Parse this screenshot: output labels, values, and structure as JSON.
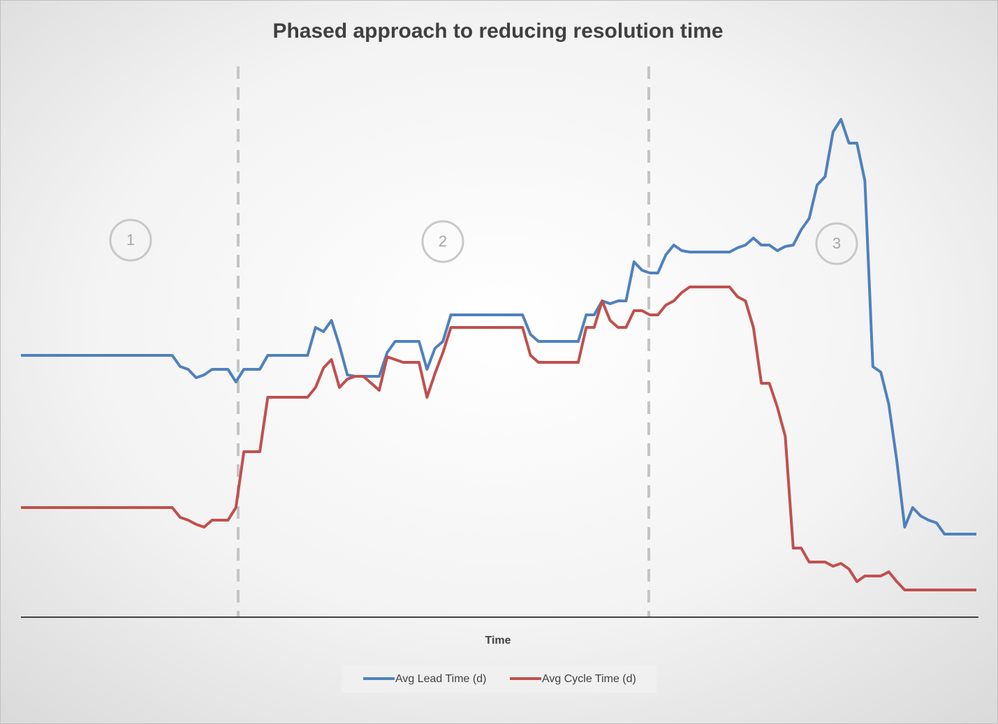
{
  "chart_data": {
    "type": "line",
    "title": "Phased approach to reducing resolution time",
    "x_label": "Time",
    "annotations": [
      "1",
      "2",
      "3"
    ],
    "categories": [
      null,
      null,
      null,
      null,
      null,
      null,
      null,
      null,
      null,
      null,
      null,
      null,
      null,
      null,
      null,
      null,
      null,
      null,
      null,
      null,
      null,
      null,
      null,
      null,
      null,
      null,
      null,
      null,
      null,
      null,
      null,
      null,
      null,
      null,
      null,
      null,
      null,
      null,
      null,
      null,
      null,
      null,
      null,
      null,
      null,
      null,
      null,
      null,
      null,
      null,
      null,
      null,
      null,
      null,
      null,
      null,
      null,
      null,
      null,
      null,
      null,
      null,
      null,
      null,
      null,
      null,
      null,
      null,
      null,
      null,
      null,
      null,
      null,
      null,
      null,
      null,
      null,
      null,
      null,
      null,
      null,
      null,
      null,
      null,
      null,
      null,
      null,
      null,
      null,
      null,
      null,
      null,
      null,
      null,
      null,
      null,
      null,
      null,
      null,
      null,
      null,
      null,
      null,
      null,
      null,
      null,
      null,
      null,
      null,
      null,
      null,
      null,
      null,
      null,
      null,
      null,
      null,
      null,
      null,
      null,
      null
    ],
    "series": [
      {
        "name": "Avg Lead Time (d)",
        "color": "#4f81bd",
        "values": [
          18.7,
          18.7,
          18.7,
          18.7,
          18.7,
          18.7,
          18.7,
          18.7,
          18.7,
          18.7,
          18.7,
          18.7,
          18.7,
          18.7,
          18.7,
          18.7,
          18.7,
          18.7,
          18.7,
          18.7,
          17.9,
          17.7,
          17.1,
          17.3,
          17.7,
          17.7,
          17.7,
          16.8,
          17.7,
          17.7,
          17.7,
          18.7,
          18.7,
          18.7,
          18.7,
          18.7,
          18.7,
          20.7,
          20.4,
          21.2,
          19.4,
          17.3,
          17.2,
          17.2,
          17.2,
          17.2,
          18.9,
          19.7,
          19.7,
          19.7,
          19.7,
          17.7,
          19.2,
          19.7,
          21.6,
          21.6,
          21.6,
          21.6,
          21.6,
          21.6,
          21.6,
          21.6,
          21.6,
          21.6,
          20.2,
          19.7,
          19.7,
          19.7,
          19.7,
          19.7,
          19.7,
          21.6,
          21.6,
          22.6,
          22.4,
          22.6,
          22.6,
          25.4,
          24.8,
          24.6,
          24.6,
          25.9,
          26.6,
          26.2,
          26.1,
          26.1,
          26.1,
          26.1,
          26.1,
          26.1,
          26.4,
          26.6,
          27.1,
          26.6,
          26.6,
          26.2,
          26.5,
          26.6,
          27.7,
          28.5,
          30.9,
          31.5,
          34.7,
          35.6,
          33.9,
          33.9,
          31.2,
          17.9,
          17.5,
          15.2,
          11.2,
          6.4,
          7.8,
          7.2,
          6.9,
          6.7,
          5.9,
          5.9,
          5.9,
          5.9,
          5.9
        ]
      },
      {
        "name": "Avg Cycle Time (d)",
        "color": "#c0504d",
        "values": [
          7.8,
          7.8,
          7.8,
          7.8,
          7.8,
          7.8,
          7.8,
          7.8,
          7.8,
          7.8,
          7.8,
          7.8,
          7.8,
          7.8,
          7.8,
          7.8,
          7.8,
          7.8,
          7.8,
          7.8,
          7.1,
          6.9,
          6.6,
          6.4,
          6.9,
          6.9,
          6.9,
          7.8,
          11.8,
          11.8,
          11.8,
          15.7,
          15.7,
          15.7,
          15.7,
          15.7,
          15.7,
          16.4,
          17.8,
          18.4,
          16.4,
          17.0,
          17.2,
          17.2,
          16.7,
          16.2,
          18.6,
          18.4,
          18.2,
          18.2,
          18.2,
          15.7,
          17.4,
          18.9,
          20.7,
          20.7,
          20.7,
          20.7,
          20.7,
          20.7,
          20.7,
          20.7,
          20.7,
          20.7,
          18.7,
          18.2,
          18.2,
          18.2,
          18.2,
          18.2,
          18.2,
          20.7,
          20.7,
          22.6,
          21.2,
          20.7,
          20.7,
          21.9,
          21.9,
          21.6,
          21.6,
          22.3,
          22.6,
          23.2,
          23.6,
          23.6,
          23.6,
          23.6,
          23.6,
          23.6,
          22.9,
          22.6,
          20.7,
          16.7,
          16.7,
          15.0,
          12.9,
          4.9,
          4.9,
          3.9,
          3.9,
          3.9,
          3.6,
          3.8,
          3.4,
          2.5,
          2.9,
          2.9,
          2.9,
          3.2,
          2.5,
          1.9,
          1.9,
          1.9,
          1.9,
          1.9,
          1.9,
          1.9,
          1.9,
          1.9,
          1.9
        ]
      }
    ],
    "ylim": [
      0,
      40
    ],
    "grid": false,
    "legend": "bottom"
  }
}
